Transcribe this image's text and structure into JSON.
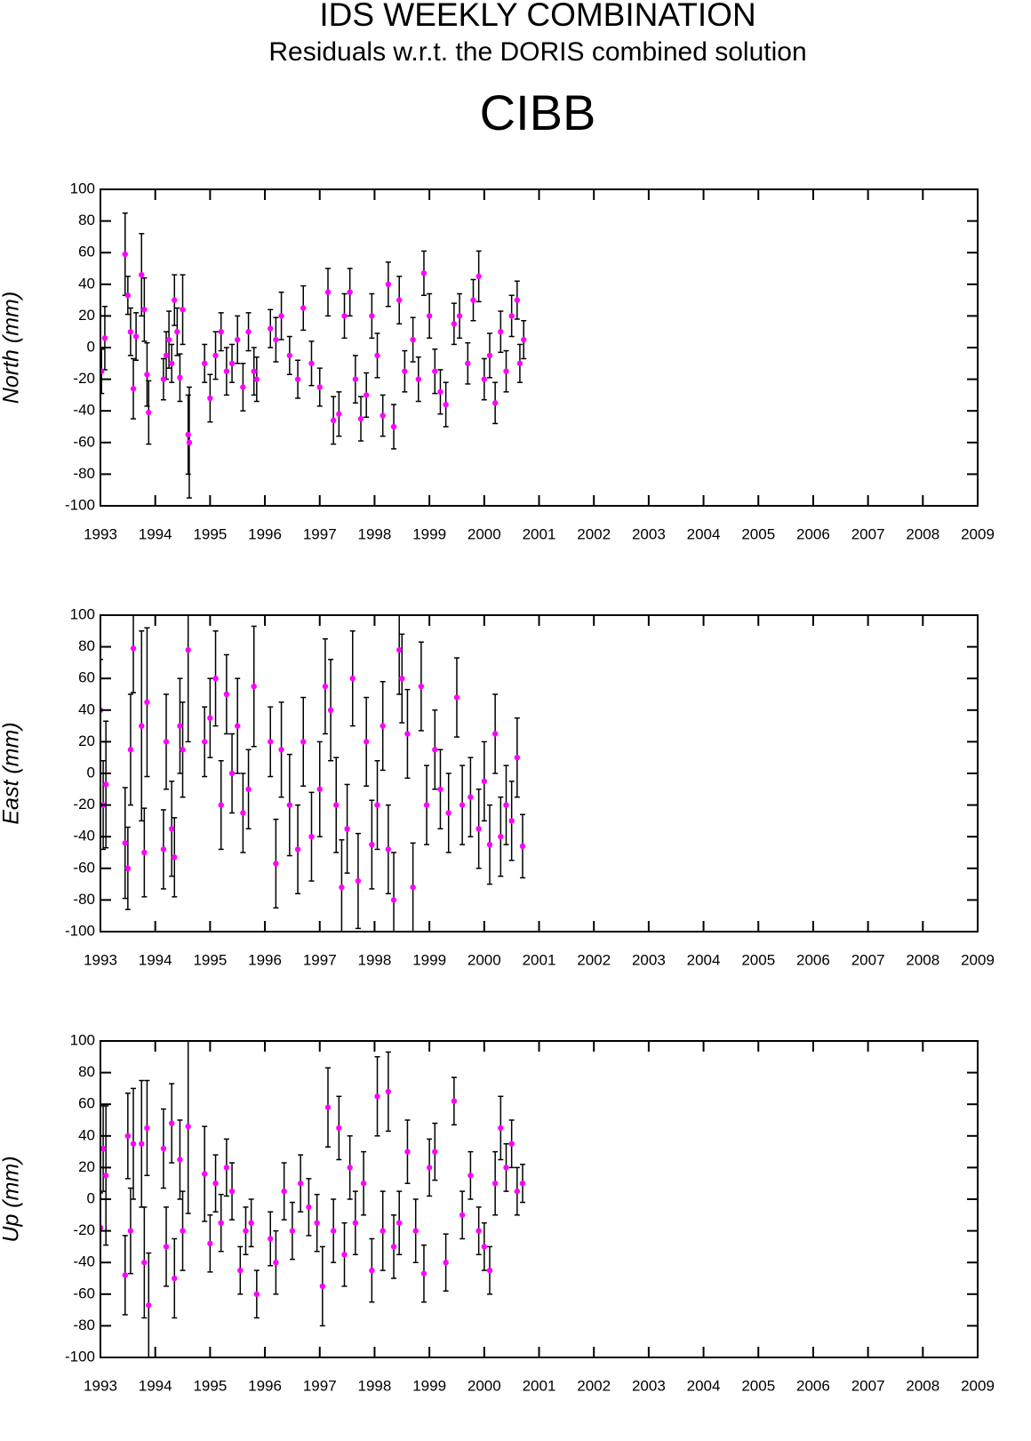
{
  "header": {
    "title": "IDS WEEKLY COMBINATION",
    "subtitle": "Residuals w.r.t. the DORIS combined solution",
    "station": "CIBB"
  },
  "chart_data": [
    {
      "type": "scatter",
      "ylabel": "North (mm)",
      "xlim": [
        1993,
        2009
      ],
      "xticks": [
        1993,
        1994,
        1995,
        1996,
        1997,
        1998,
        1999,
        2000,
        2001,
        2002,
        2003,
        2004,
        2005,
        2006,
        2007,
        2008,
        2009
      ],
      "ylim": [
        -100,
        100
      ],
      "yticks": [
        -100,
        -80,
        -60,
        -40,
        -20,
        0,
        20,
        40,
        60,
        80,
        100
      ],
      "x": [
        1993.02,
        1993.08,
        1993.45,
        1993.5,
        1993.55,
        1993.6,
        1993.65,
        1993.75,
        1993.8,
        1993.85,
        1993.88,
        1994.15,
        1994.2,
        1994.25,
        1994.3,
        1994.35,
        1994.4,
        1994.45,
        1994.5,
        1994.6,
        1994.62,
        1994.9,
        1995.0,
        1995.1,
        1995.2,
        1995.3,
        1995.4,
        1995.5,
        1995.6,
        1995.7,
        1995.8,
        1995.85,
        1996.1,
        1996.2,
        1996.3,
        1996.45,
        1996.6,
        1996.7,
        1996.85,
        1997.0,
        1997.15,
        1997.25,
        1997.35,
        1997.45,
        1997.55,
        1997.65,
        1997.75,
        1997.85,
        1997.95,
        1998.05,
        1998.15,
        1998.25,
        1998.35,
        1998.45,
        1998.55,
        1998.7,
        1998.8,
        1998.9,
        1999.0,
        1999.1,
        1999.2,
        1999.3,
        1999.45,
        1999.55,
        1999.7,
        1999.8,
        1999.9,
        2000.0,
        2000.1,
        2000.2,
        2000.3,
        2000.4,
        2000.5,
        2000.6,
        2000.65,
        2000.72
      ],
      "series": [
        {
          "color": "#ff00ff",
          "values": [
            -15,
            6,
            59,
            33,
            10,
            -26,
            7,
            46,
            24,
            -17,
            -41,
            -20,
            -5,
            5,
            -10,
            30,
            10,
            -19,
            24,
            -55,
            -60,
            -10,
            -32,
            -5,
            10,
            -15,
            -10,
            5,
            -25,
            10,
            -15,
            -20,
            12,
            5,
            20,
            -5,
            -20,
            25,
            -10,
            -25,
            35,
            -46,
            -42,
            20,
            35,
            -20,
            -45,
            -30,
            20,
            -5,
            -43,
            40,
            -50,
            30,
            -15,
            5,
            -20,
            47,
            20,
            -15,
            -28,
            -36,
            15,
            20,
            -10,
            30,
            45,
            -20,
            -5,
            -35,
            10,
            -15,
            20,
            30,
            -10,
            5
          ],
          "errors": [
            14,
            20,
            26,
            12,
            15,
            19,
            15,
            26,
            20,
            20,
            20,
            13,
            15,
            18,
            12,
            16,
            15,
            15,
            22,
            25,
            35,
            12,
            15,
            15,
            12,
            15,
            12,
            15,
            15,
            12,
            15,
            14,
            12,
            14,
            15,
            12,
            12,
            14,
            14,
            12,
            15,
            15,
            14,
            14,
            15,
            15,
            14,
            14,
            14,
            14,
            13,
            14,
            14,
            15,
            13,
            14,
            14,
            14,
            14,
            14,
            14,
            14,
            13,
            14,
            13,
            13,
            16,
            13,
            14,
            13,
            13,
            13,
            13,
            12,
            12,
            12
          ]
        }
      ]
    },
    {
      "type": "scatter",
      "ylabel": "East (mm)",
      "xlim": [
        1993,
        2009
      ],
      "xticks": [
        1993,
        1994,
        1995,
        1996,
        1997,
        1998,
        1999,
        2000,
        2001,
        2002,
        2003,
        2004,
        2005,
        2006,
        2007,
        2008,
        2009
      ],
      "ylim": [
        -100,
        100
      ],
      "yticks": [
        -100,
        -80,
        -60,
        -40,
        -20,
        0,
        20,
        40,
        60,
        80,
        100
      ],
      "x": [
        1993.0,
        1993.05,
        1993.1,
        1993.45,
        1993.5,
        1993.55,
        1993.6,
        1993.75,
        1993.8,
        1993.85,
        1994.15,
        1994.2,
        1994.3,
        1994.35,
        1994.45,
        1994.5,
        1994.6,
        1994.9,
        1995.0,
        1995.1,
        1995.2,
        1995.3,
        1995.4,
        1995.5,
        1995.6,
        1995.7,
        1995.8,
        1996.1,
        1996.2,
        1996.3,
        1996.45,
        1996.6,
        1996.7,
        1996.85,
        1997.0,
        1997.1,
        1997.2,
        1997.3,
        1997.4,
        1997.5,
        1997.6,
        1997.7,
        1997.85,
        1997.95,
        1998.05,
        1998.15,
        1998.25,
        1998.35,
        1998.45,
        1998.5,
        1998.6,
        1998.7,
        1998.85,
        1998.95,
        1999.1,
        1999.2,
        1999.35,
        1999.5,
        1999.6,
        1999.75,
        1999.9,
        2000.0,
        2000.1,
        2000.2,
        2000.3,
        2000.4,
        2000.5,
        2000.6,
        2000.7
      ],
      "series": [
        {
          "color": "#ff00ff",
          "values": [
            40,
            -20,
            -7,
            -44,
            -60,
            15,
            79,
            30,
            -50,
            45,
            -48,
            20,
            -35,
            -53,
            30,
            15,
            78,
            20,
            35,
            60,
            -20,
            50,
            0,
            30,
            -25,
            -10,
            55,
            20,
            -57,
            15,
            -20,
            -48,
            20,
            -40,
            -10,
            55,
            40,
            -20,
            -72,
            -35,
            60,
            -68,
            20,
            -45,
            -20,
            30,
            -48,
            -80,
            78,
            60,
            25,
            -72,
            55,
            -20,
            15,
            -10,
            -25,
            48,
            -20,
            -15,
            -35,
            -5,
            -45,
            25,
            -40,
            -20,
            -30,
            10,
            -46
          ],
          "errors": [
            32,
            28,
            40,
            35,
            26,
            35,
            28,
            60,
            28,
            47,
            25,
            30,
            30,
            25,
            30,
            30,
            58,
            22,
            25,
            30,
            28,
            25,
            25,
            30,
            25,
            25,
            38,
            22,
            28,
            30,
            32,
            28,
            28,
            28,
            30,
            30,
            32,
            30,
            30,
            28,
            30,
            30,
            28,
            28,
            28,
            28,
            28,
            30,
            28,
            28,
            28,
            28,
            28,
            25,
            25,
            25,
            25,
            25,
            25,
            25,
            25,
            25,
            25,
            25,
            25,
            25,
            25,
            25,
            20
          ]
        }
      ]
    },
    {
      "type": "scatter",
      "ylabel": "Up (mm)",
      "xlim": [
        1993,
        2009
      ],
      "xticks": [
        1993,
        1994,
        1995,
        1996,
        1997,
        1998,
        1999,
        2000,
        2001,
        2002,
        2003,
        2004,
        2005,
        2006,
        2007,
        2008,
        2009
      ],
      "ylim": [
        -100,
        100
      ],
      "yticks": [
        -100,
        -80,
        -60,
        -40,
        -20,
        0,
        20,
        40,
        60,
        80,
        100
      ],
      "x": [
        1993.0,
        1993.05,
        1993.1,
        1993.45,
        1993.5,
        1993.55,
        1993.6,
        1993.75,
        1993.8,
        1993.85,
        1993.88,
        1994.15,
        1994.2,
        1994.3,
        1994.35,
        1994.45,
        1994.5,
        1994.6,
        1994.9,
        1995.0,
        1995.1,
        1995.2,
        1995.3,
        1995.4,
        1995.55,
        1995.65,
        1995.75,
        1995.85,
        1996.1,
        1996.2,
        1996.35,
        1996.5,
        1996.65,
        1996.8,
        1996.95,
        1997.05,
        1997.15,
        1997.25,
        1997.35,
        1997.45,
        1997.55,
        1997.65,
        1997.8,
        1997.95,
        1998.05,
        1998.15,
        1998.25,
        1998.35,
        1998.45,
        1998.6,
        1998.75,
        1998.9,
        1999.0,
        1999.1,
        1999.3,
        1999.45,
        1999.6,
        1999.75,
        1999.9,
        2000.0,
        2000.1,
        2000.2,
        2000.3,
        2000.4,
        2000.5,
        2000.6,
        2000.7
      ],
      "series": [
        {
          "color": "#ff00ff",
          "values": [
            -18,
            32,
            15,
            -48,
            40,
            -20,
            35,
            35,
            -40,
            45,
            -67,
            32,
            -30,
            48,
            -50,
            25,
            -20,
            46,
            16,
            -28,
            10,
            -15,
            20,
            5,
            -45,
            -20,
            -15,
            -60,
            -25,
            -40,
            5,
            -20,
            10,
            -5,
            -15,
            -55,
            58,
            -20,
            45,
            -35,
            20,
            -15,
            10,
            -45,
            65,
            -20,
            68,
            -30,
            -15,
            30,
            -20,
            -47,
            20,
            30,
            -40,
            62,
            -10,
            15,
            -20,
            -30,
            -45,
            10,
            45,
            20,
            35,
            5,
            10
          ],
          "errors": [
            22,
            27,
            44,
            25,
            27,
            27,
            35,
            40,
            35,
            30,
            33,
            25,
            25,
            25,
            25,
            25,
            25,
            55,
            30,
            18,
            18,
            18,
            18,
            18,
            15,
            15,
            15,
            15,
            17,
            20,
            18,
            18,
            18,
            18,
            18,
            25,
            25,
            20,
            20,
            20,
            20,
            20,
            20,
            20,
            25,
            25,
            25,
            20,
            20,
            20,
            20,
            18,
            18,
            18,
            18,
            15,
            15,
            15,
            15,
            15,
            15,
            20,
            20,
            15,
            15,
            15,
            12
          ]
        }
      ]
    }
  ]
}
